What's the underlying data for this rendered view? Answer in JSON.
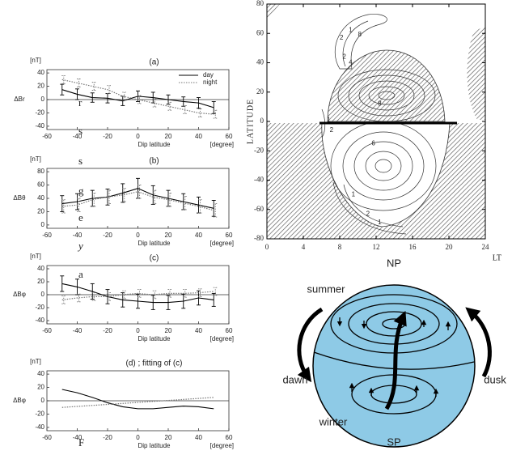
{
  "text_fragments": [
    "r",
    "s",
    "s",
    "g",
    "e",
    "y",
    "a",
    "F"
  ],
  "chart_data": [
    {
      "type": "line",
      "title": "(a)",
      "y_unit": "[nT]",
      "y_label": "ΔBr",
      "x_label": "Dip latitude",
      "x_unit": "[degree]",
      "x": [
        -50,
        -40,
        -30,
        -20,
        -10,
        0,
        10,
        20,
        30,
        40,
        50
      ],
      "series": [
        {
          "name": "day",
          "color": "#000000",
          "style": "solid",
          "values": [
            15,
            8,
            3,
            2,
            -2,
            5,
            3,
            0,
            -3,
            -5,
            -12
          ],
          "errors": [
            8,
            8,
            7,
            7,
            7,
            8,
            8,
            7,
            7,
            8,
            9
          ]
        },
        {
          "name": "night",
          "color": "#777777",
          "style": "dotted",
          "values": [
            30,
            25,
            20,
            15,
            5,
            0,
            -5,
            -10,
            -15,
            -20,
            -22
          ],
          "errors": [
            6,
            6,
            6,
            6,
            6,
            6,
            6,
            6,
            6,
            6,
            6
          ]
        }
      ],
      "xlim": [
        -60,
        60
      ],
      "xticks": [
        -60,
        -40,
        -20,
        0,
        20,
        40,
        60
      ],
      "ylim": [
        -45,
        45
      ],
      "yticks": [
        40,
        20,
        0,
        -20,
        -40
      ],
      "zero_line": true,
      "legend": "upper right"
    },
    {
      "type": "line",
      "title": "(b)",
      "y_unit": "[nT]",
      "y_label": "ΔBθ",
      "x_label": "Dip latitude",
      "x_unit": "[degree]",
      "x": [
        -50,
        -40,
        -30,
        -20,
        -10,
        0,
        10,
        20,
        30,
        40,
        50
      ],
      "series": [
        {
          "color": "#000000",
          "style": "solid",
          "values": [
            32,
            35,
            40,
            42,
            48,
            55,
            45,
            40,
            35,
            30,
            25
          ],
          "errors": [
            12,
            12,
            12,
            12,
            14,
            15,
            14,
            12,
            12,
            12,
            12
          ]
        },
        {
          "color": "#777777",
          "style": "dotted",
          "values": [
            28,
            30,
            38,
            42,
            45,
            50,
            42,
            38,
            33,
            28,
            22
          ],
          "errors": [
            10,
            10,
            10,
            10,
            10,
            10,
            10,
            10,
            10,
            10,
            10
          ]
        }
      ],
      "xlim": [
        -60,
        60
      ],
      "xticks": [
        -60,
        -40,
        -20,
        0,
        20,
        40,
        60
      ],
      "ylim": [
        -5,
        85
      ],
      "yticks": [
        80,
        60,
        40,
        20,
        0
      ],
      "zero_line": false
    },
    {
      "type": "line",
      "title": "(c)",
      "y_unit": "[nT]",
      "y_label": "ΔBφ",
      "x_label": "Dip latitude",
      "x_unit": "[degree]",
      "x": [
        -50,
        -40,
        -30,
        -20,
        -10,
        0,
        10,
        20,
        30,
        40,
        50
      ],
      "series": [
        {
          "color": "#000000",
          "style": "solid",
          "values": [
            17,
            12,
            5,
            -3,
            -8,
            -10,
            -12,
            -12,
            -10,
            -5,
            -8
          ],
          "errors": [
            12,
            12,
            12,
            11,
            11,
            11,
            11,
            11,
            11,
            11,
            10
          ]
        },
        {
          "color": "#777777",
          "style": "dotted",
          "values": [
            -8,
            -5,
            -3,
            -3,
            0,
            2,
            0,
            2,
            2,
            3,
            5
          ],
          "errors": [
            6,
            6,
            6,
            6,
            6,
            6,
            6,
            6,
            6,
            6,
            6
          ]
        }
      ],
      "xlim": [
        -60,
        60
      ],
      "xticks": [
        -60,
        -40,
        -20,
        0,
        20,
        40,
        60
      ],
      "ylim": [
        -45,
        45
      ],
      "yticks": [
        40,
        20,
        0,
        -20,
        -40
      ],
      "zero_line": true
    },
    {
      "type": "line",
      "title": "(d) ; fitting of (c)",
      "y_unit": "[nT]",
      "y_label": "ΔBφ",
      "x_label": "Dip latitude",
      "x_unit": "[degree]",
      "x": [
        -50,
        -40,
        -30,
        -20,
        -10,
        0,
        10,
        20,
        30,
        40,
        50
      ],
      "series": [
        {
          "color": "#000000",
          "style": "solid",
          "values": [
            17,
            12,
            5,
            -3,
            -9,
            -12,
            -12,
            -10,
            -8,
            -9,
            -12
          ]
        },
        {
          "color": "#777777",
          "style": "dotted",
          "values": [
            -10,
            -8.5,
            -7,
            -5.5,
            -4,
            -2.5,
            -1,
            0.5,
            2,
            3.5,
            5
          ]
        }
      ],
      "xlim": [
        -60,
        60
      ],
      "xticks": [
        -60,
        -40,
        -20,
        0,
        20,
        40,
        60
      ],
      "ylim": [
        -45,
        45
      ],
      "yticks": [
        40,
        20,
        0,
        -20,
        -40
      ],
      "zero_line": true
    },
    {
      "type": "contour",
      "y_label": "LATITUDE",
      "x_label": "LT",
      "xlim": [
        0,
        24
      ],
      "xticks": [
        0,
        4,
        8,
        12,
        16,
        20,
        24
      ],
      "ylim": [
        -80,
        80
      ],
      "yticks": [
        80,
        60,
        40,
        20,
        0,
        -20,
        -40,
        -60,
        -80
      ],
      "contour_labels": [
        {
          "text": "2",
          "x": 8.2,
          "y": 57
        },
        {
          "text": "1",
          "x": 9.2,
          "y": 62
        },
        {
          "text": "8",
          "x": 10.2,
          "y": 59
        },
        {
          "text": "2",
          "x": 8.5,
          "y": 44
        },
        {
          "text": "4",
          "x": 9.2,
          "y": 40
        },
        {
          "text": "1",
          "x": 6.8,
          "y": 1
        },
        {
          "text": "2",
          "x": 7.1,
          "y": -6
        },
        {
          "text": "8",
          "x": 12.4,
          "y": 12
        },
        {
          "text": "6",
          "x": 11.7,
          "y": -15
        },
        {
          "text": "1",
          "x": 9.5,
          "y": -50
        },
        {
          "text": "2",
          "x": 11.1,
          "y": -63
        },
        {
          "text": "1",
          "x": 12.4,
          "y": -69
        }
      ]
    }
  ],
  "diagram": {
    "np": "NP",
    "sp": "SP",
    "summer": "summer",
    "winter": "winter",
    "dawn": "dawn",
    "dusk": "dusk"
  }
}
